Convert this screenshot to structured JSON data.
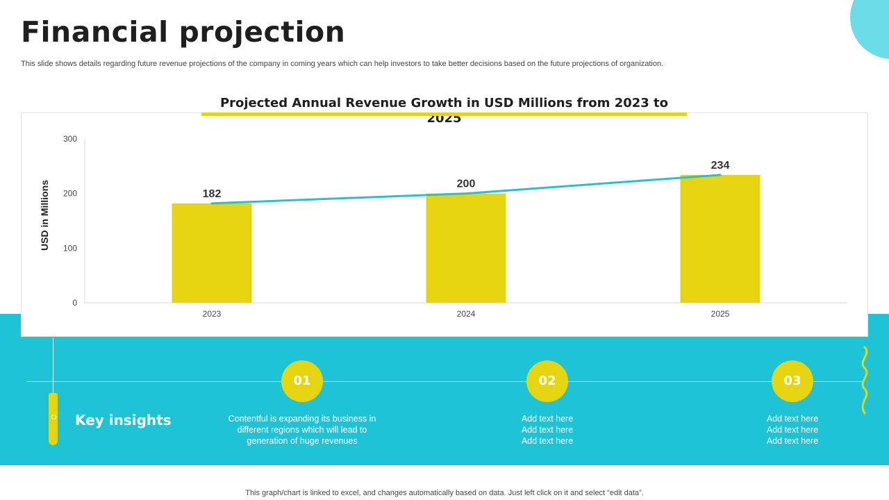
{
  "header": {
    "title": "Financial projection",
    "subtitle": "This slide shows details regarding future revenue projections of the company in coming years which can help investors to take better decisions based on the future projections of organization."
  },
  "chart_data": {
    "type": "bar",
    "title": "Projected Annual Revenue Growth in USD Millions from 2023 to 2025",
    "categories": [
      "2023",
      "2024",
      "2025"
    ],
    "values": [
      182,
      200,
      234
    ],
    "value_labels": [
      "182",
      "200",
      "234"
    ],
    "trendline": true,
    "xlabel": "",
    "ylabel": "USD in Millions",
    "ylim": [
      0,
      300
    ],
    "yticks": [
      0,
      100,
      200,
      300
    ],
    "ytick_labels": [
      "0",
      "100",
      "200",
      "300"
    ],
    "grid": false,
    "colors": {
      "bar": "#e5d40f",
      "trend": "#2bbfce"
    }
  },
  "insights": {
    "heading": "Key insights",
    "items": [
      {
        "number": "01",
        "lines": [
          "Contentful is expanding its business in",
          "different regions which will lead to",
          "generation of huge revenues"
        ]
      },
      {
        "number": "02",
        "lines": [
          "Add text here",
          "Add text here",
          "Add text here"
        ]
      },
      {
        "number": "03",
        "lines": [
          "Add text here",
          "Add text here",
          "Add text here"
        ]
      }
    ]
  },
  "footer": {
    "note": "This graph/chart is linked to excel, and changes automatically based on data. Just left click on it and select “edit data”."
  },
  "colors": {
    "accent_yellow": "#e5d40f",
    "accent_cyan": "#1ec3d6",
    "light_cyan": "#6bdde9"
  }
}
